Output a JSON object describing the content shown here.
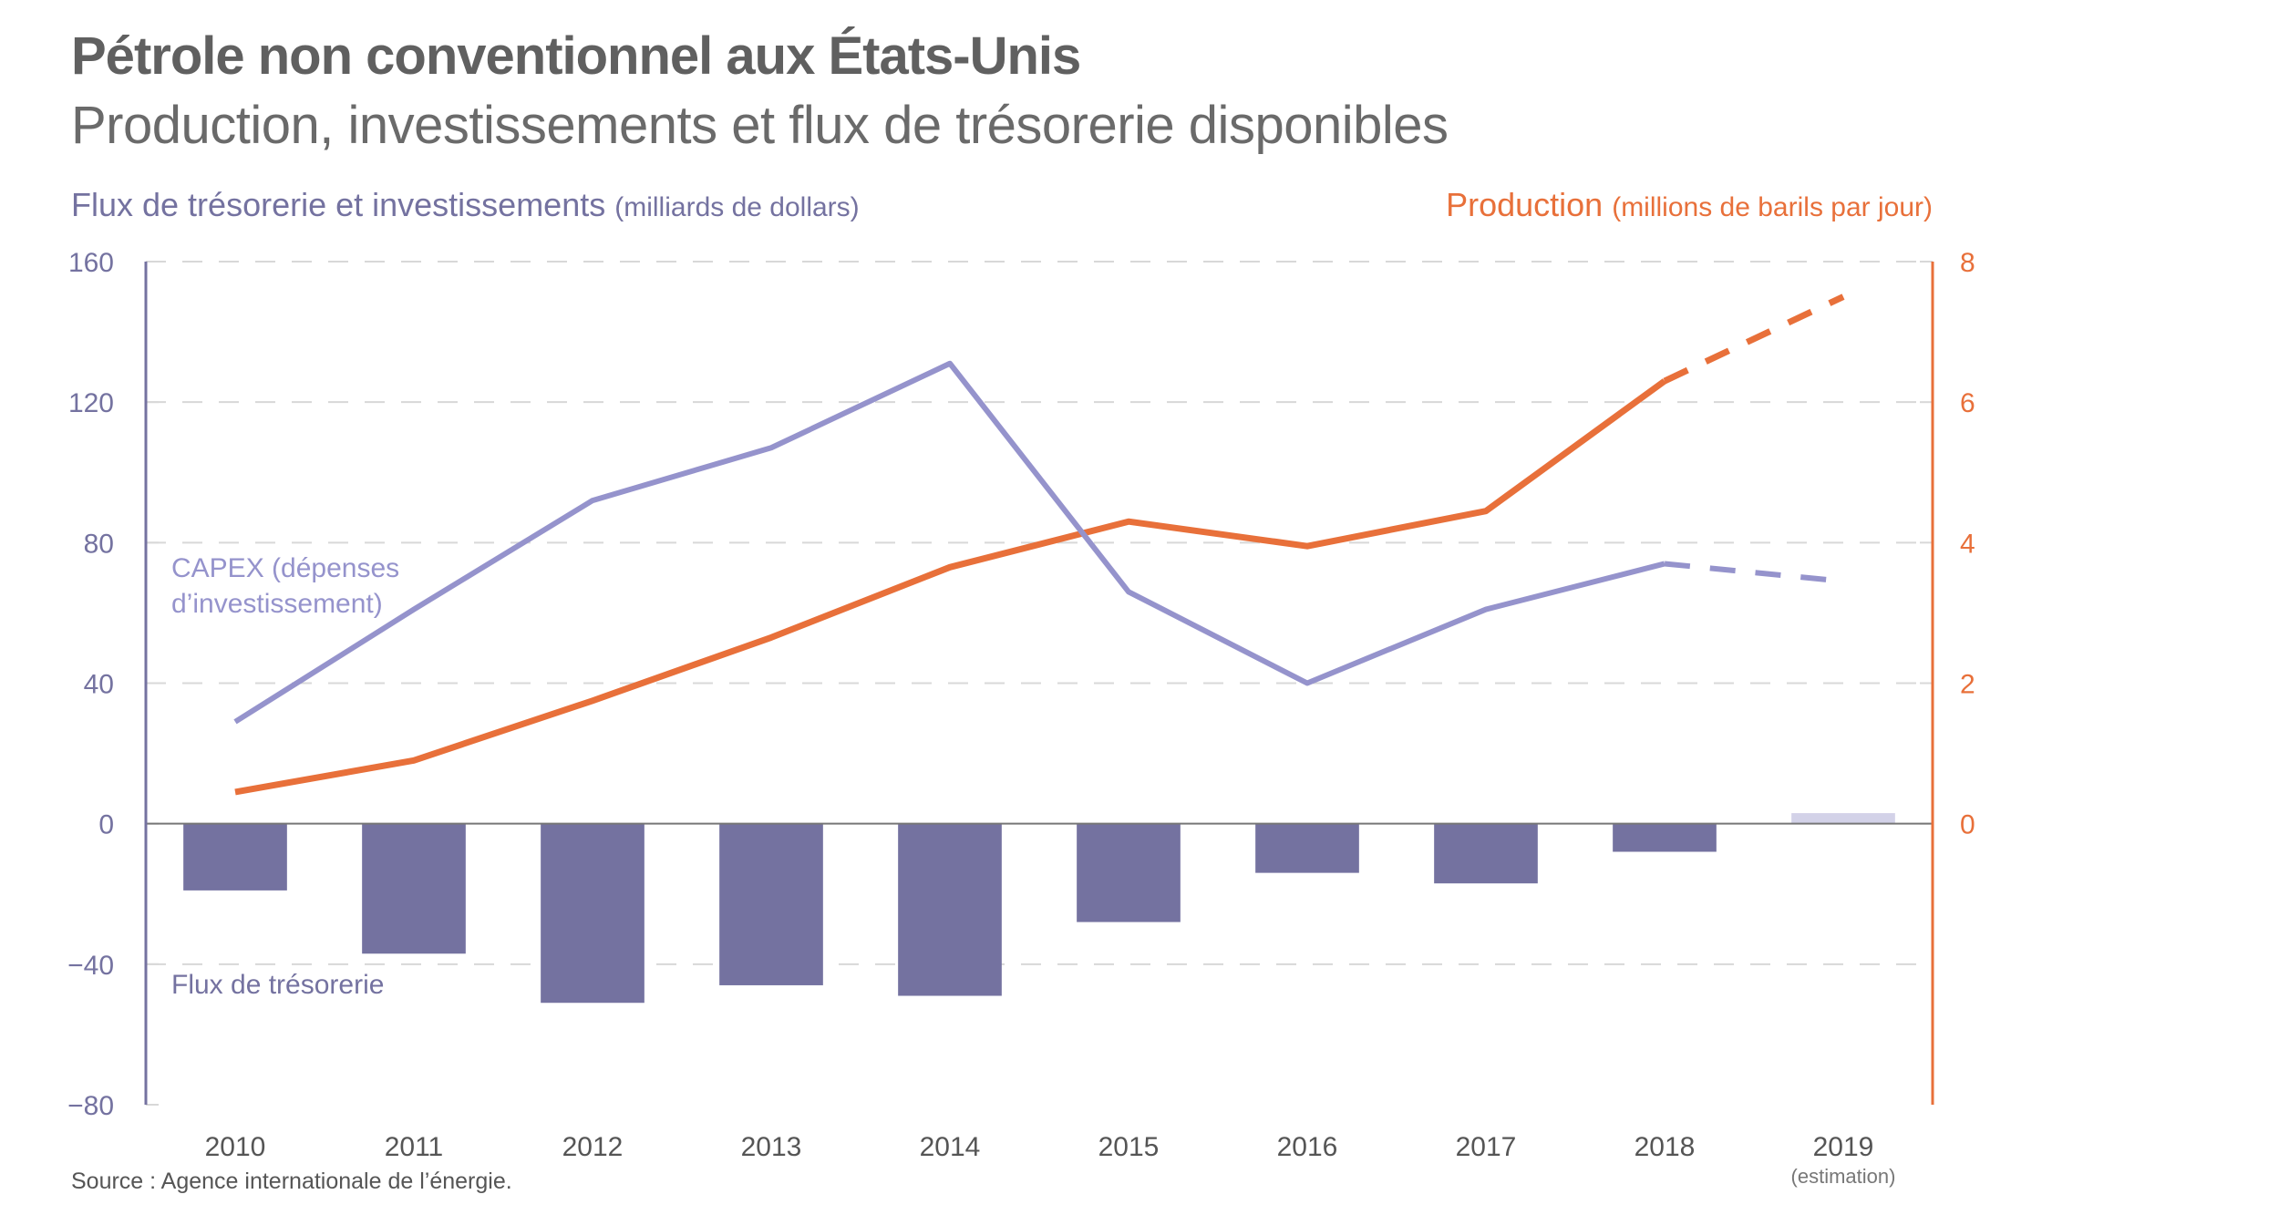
{
  "header": {
    "title": "Pétrole non conventionnel aux États-Unis",
    "subtitle": "Production, investissements et flux de trésorerie disponibles",
    "left_axis_title": "Flux de trésorerie et investissements",
    "left_axis_unit": "(milliards de dollars)",
    "right_axis_title": "Production",
    "right_axis_unit": "(millions de barils par jour)"
  },
  "footer": {
    "source": "Source : Agence internationale de l’énergie."
  },
  "annotations": {
    "capex_line1": "CAPEX (dépenses",
    "capex_line2": "d’investissement)",
    "cashflow": "Flux de trésorerie",
    "estimate_note": "(estimation)"
  },
  "colors": {
    "capex": "#9593cc",
    "cashflow": "#7472a0",
    "cashflow_estimate": "#d3d2e8",
    "production": "#e8703a",
    "left_axis": "#7472a0",
    "grid": "#d8d8d8"
  },
  "chart_data": {
    "type": "line",
    "title": "Pétrole non conventionnel aux États-Unis",
    "subtitle": "Production, investissements et flux de trésorerie disponibles",
    "categories": [
      "2010",
      "2011",
      "2012",
      "2013",
      "2014",
      "2015",
      "2016",
      "2017",
      "2018",
      "2019"
    ],
    "estimated_categories": [
      "2019"
    ],
    "xlabel": "",
    "ylabel": "Flux de trésorerie et investissements (milliards de dollars)",
    "ylabel_right": "Production (millions de barils par jour)",
    "ylim": [
      -80,
      160
    ],
    "yticks": [
      -80,
      -40,
      0,
      40,
      80,
      120,
      160
    ],
    "ytick_labels": [
      "−80",
      "−40",
      "0",
      "40",
      "80",
      "120",
      "160"
    ],
    "ylim_right": [
      0,
      8
    ],
    "yticks_right": [
      0,
      2,
      4,
      6,
      8
    ],
    "grid": true,
    "series": [
      {
        "name": "CAPEX (dépenses d’investissement)",
        "type": "line",
        "axis": "left",
        "values": [
          29,
          61,
          92,
          107,
          131,
          66,
          40,
          61,
          74,
          69
        ]
      },
      {
        "name": "Flux de trésorerie",
        "type": "bar",
        "axis": "left",
        "values": [
          -19,
          -37,
          -51,
          -46,
          -49,
          -28,
          -14,
          -17,
          -8,
          3
        ]
      },
      {
        "name": "Production",
        "type": "line",
        "axis": "right",
        "values": [
          0.45,
          0.9,
          1.75,
          2.65,
          3.65,
          4.3,
          3.95,
          4.45,
          6.3,
          7.5
        ]
      }
    ]
  }
}
